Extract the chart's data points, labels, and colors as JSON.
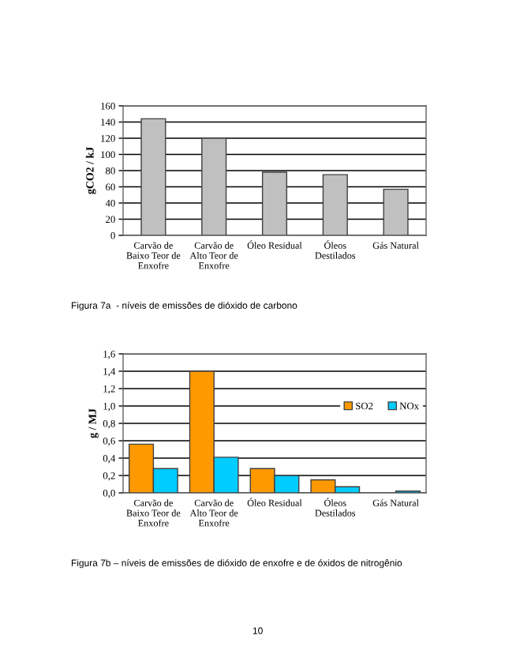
{
  "chart_data": [
    {
      "type": "bar",
      "categories": [
        "Carvão de Baixo Teor de Enxofre",
        "Carvão de Alto Teor de Enxofre",
        "Óleo Residual",
        "Óleos Destilados",
        "Gás Natural"
      ],
      "ylabel": "gCO2 / kJ",
      "series": [
        {
          "color": "#c0c0c0",
          "values": [
            144,
            120,
            78,
            75,
            57
          ]
        }
      ],
      "ylim": [
        0,
        160
      ],
      "yticks": [
        0,
        20,
        40,
        60,
        80,
        100,
        120,
        140,
        160
      ],
      "grid": "y",
      "annotations": [
        "Figura 7a  - níveis de emissões de dióxido de carbono"
      ]
    },
    {
      "type": "bar",
      "categories": [
        "Carvão de Baixo Teor de Enxofre",
        "Carvão de Alto Teor de Enxofre",
        "Óleo Residual",
        "Óleos Destilados",
        "Gás Natural"
      ],
      "ylabel": "g / MJ",
      "series": [
        {
          "name": "SO2",
          "color": "#ff9900",
          "values": [
            0.56,
            1.4,
            0.28,
            0.15,
            0
          ]
        },
        {
          "name": "NOx",
          "color": "#00ccff",
          "values": [
            0.28,
            0.41,
            0.2,
            0.07,
            0.02
          ]
        }
      ],
      "ylim": [
        0,
        1.6
      ],
      "yticks": [
        {
          "value": 0,
          "label": "0,0"
        },
        {
          "value": 0.2,
          "label": "0,2"
        },
        {
          "value": 0.4,
          "label": "0,4"
        },
        {
          "value": 0.6,
          "label": "0,6"
        },
        {
          "value": 0.8,
          "label": "0,8"
        },
        {
          "value": 1.0,
          "label": "1,0"
        },
        {
          "value": 1.2,
          "label": "1,2"
        },
        {
          "value": 1.4,
          "label": "1,4"
        },
        {
          "value": 1.6,
          "label": "1,6"
        }
      ],
      "grid": "y",
      "legend": "right",
      "annotations": [
        "Figura 7b – níveis de emissões de dióxido de enxofre e de óxidos de nitrogênio",
        "10"
      ]
    }
  ]
}
